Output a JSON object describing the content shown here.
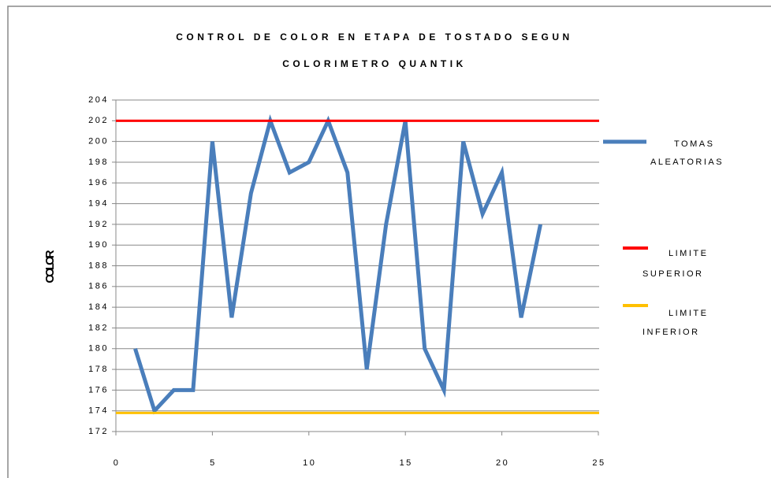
{
  "chart_data": {
    "type": "line",
    "title": [
      "CONTROL DE COLOR EN ETAPA DE TOSTADO SEGUN",
      "COLORIMETRO QUANTIK"
    ],
    "y_label": "COLOR",
    "x": [
      1,
      2,
      3,
      4,
      5,
      6,
      7,
      8,
      9,
      10,
      11,
      12,
      13,
      14,
      15,
      16,
      17,
      18,
      19,
      20,
      21,
      22
    ],
    "series": [
      {
        "name": "TOMAS ALEATORIAS",
        "color": "#4a7ebb",
        "values": [
          180,
          174,
          176,
          176,
          200,
          183,
          195,
          202,
          197,
          198,
          202,
          197,
          178,
          192,
          202,
          180,
          176,
          200,
          193,
          197,
          183,
          192
        ]
      },
      {
        "name": "LIMITE SUPERIOR",
        "color": "#ff0000",
        "value": 202
      },
      {
        "name": "LIMITE INFERIOR",
        "color": "#ffc000",
        "value": 173.8
      }
    ],
    "xlim": [
      0,
      25
    ],
    "xticks": [
      0,
      5,
      10,
      15,
      20,
      25
    ],
    "ylim": [
      172,
      204
    ],
    "yticks": [
      172,
      174,
      176,
      178,
      180,
      182,
      184,
      186,
      188,
      190,
      192,
      194,
      196,
      198,
      200,
      202,
      204
    ],
    "grid": true,
    "legend": "right"
  }
}
